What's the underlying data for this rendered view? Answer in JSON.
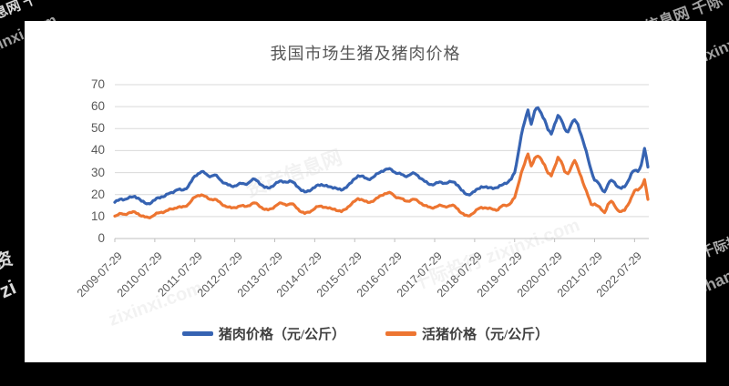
{
  "page": {
    "background": "#000000",
    "panel_background": "#ffffff"
  },
  "watermarks": {
    "top_left_cn": "息网 千",
    "top_left_url": "zixinxi.com",
    "top_right_cn": "产信息网 千际",
    "top_right_url": "zixinxi.com",
    "left_mid_cn": "资",
    "bottom_left_url": "zi",
    "right_mid_cn": "千际投",
    "right_mid_url": "chan",
    "inner_1": "资产信息网",
    "inner_2": "千际投行 zixinxi.com",
    "inner_3": "zixinxi.com"
  },
  "chart_data": {
    "type": "line",
    "title": "我国市场生猪及猪肉价格",
    "xlabel": "",
    "ylabel": "",
    "ylim": [
      0,
      70
    ],
    "yticks": [
      0,
      10,
      20,
      30,
      40,
      50,
      60,
      70
    ],
    "grid": true,
    "legend_position": "bottom",
    "x_unit": "monthly from 2009-07 to 2022-11",
    "x_tick_labels": [
      "2009-07-29",
      "2010-07-29",
      "2011-07-29",
      "2012-07-29",
      "2013-07-29",
      "2014-07-29",
      "2015-07-29",
      "2016-07-29",
      "2017-07-29",
      "2018-07-29",
      "2019-07-29",
      "2020-07-29",
      "2021-07-29",
      "2022-07-29"
    ],
    "months_per_tick": 12,
    "colors": {
      "grid": "#d9d9d9",
      "axis": "#bfbfbf",
      "tick_text": "#595959"
    },
    "series": [
      {
        "name": "活猪价格（元/公斤）",
        "color": "#ED7531",
        "values": [
          10.2,
          10.8,
          11.3,
          11.0,
          11.5,
          11.8,
          12.1,
          11.3,
          10.2,
          9.8,
          9.6,
          9.9,
          10.8,
          11.6,
          12.0,
          12.2,
          12.9,
          13.4,
          13.8,
          14.3,
          14.2,
          14.6,
          15.5,
          17.2,
          18.8,
          19.6,
          19.9,
          19.2,
          18.2,
          17.8,
          17.9,
          17.0,
          15.8,
          14.9,
          14.3,
          13.9,
          14.1,
          14.6,
          14.9,
          14.6,
          14.9,
          15.7,
          16.2,
          15.4,
          14.2,
          13.2,
          13.0,
          13.6,
          14.6,
          15.6,
          16.1,
          15.6,
          15.4,
          15.8,
          15.0,
          13.4,
          12.0,
          11.4,
          12.0,
          12.6,
          13.6,
          14.6,
          14.8,
          14.2,
          13.8,
          13.6,
          13.4,
          12.6,
          12.2,
          13.2,
          14.4,
          15.6,
          17.0,
          18.2,
          17.8,
          17.0,
          16.4,
          16.8,
          17.6,
          18.6,
          19.6,
          20.4,
          20.8,
          20.6,
          19.2,
          18.6,
          18.2,
          17.2,
          17.0,
          17.6,
          17.8,
          17.0,
          16.0,
          15.0,
          14.4,
          14.0,
          14.2,
          14.8,
          15.0,
          14.6,
          14.6,
          15.0,
          14.8,
          13.4,
          11.6,
          10.6,
          10.3,
          11.0,
          12.0,
          13.4,
          14.2,
          14.0,
          13.6,
          13.6,
          13.2,
          13.0,
          14.6,
          15.2,
          15.2,
          16.4,
          18.6,
          24.0,
          30.0,
          34.0,
          38.5,
          33.0,
          36.5,
          37.5,
          36.0,
          33.5,
          29.8,
          28.5,
          32.5,
          37.0,
          35.0,
          30.5,
          29.5,
          32.5,
          35.5,
          32.0,
          28.0,
          23.5,
          19.5,
          15.5,
          15.8,
          14.8,
          13.2,
          11.8,
          15.5,
          17.0,
          15.0,
          12.8,
          12.3,
          12.8,
          15.3,
          18.5,
          21.8,
          22.0,
          23.5,
          26.8,
          17.8
        ]
      },
      {
        "name": "猪肉价格（元/公斤）",
        "color": "#3663B2",
        "values": [
          16.5,
          17.3,
          18.0,
          17.8,
          18.3,
          18.8,
          19.2,
          18.4,
          17.0,
          16.2,
          15.9,
          16.3,
          17.5,
          18.6,
          19.0,
          19.2,
          20.3,
          21.0,
          21.6,
          22.3,
          22.0,
          22.5,
          23.6,
          26.0,
          28.4,
          29.5,
          30.4,
          29.8,
          28.6,
          28.4,
          28.9,
          27.8,
          26.2,
          25.2,
          24.4,
          23.8,
          24.0,
          24.6,
          25.0,
          24.8,
          25.2,
          26.4,
          27.0,
          26.0,
          24.4,
          23.2,
          23.0,
          23.6,
          24.6,
          25.6,
          26.2,
          25.8,
          25.6,
          26.0,
          25.2,
          23.4,
          21.8,
          21.2,
          21.8,
          22.2,
          23.2,
          24.4,
          24.6,
          24.0,
          23.6,
          23.4,
          23.2,
          22.4,
          22.0,
          23.0,
          24.2,
          25.4,
          27.2,
          28.6,
          28.4,
          27.6,
          27.0,
          27.4,
          28.4,
          29.6,
          30.6,
          31.2,
          31.6,
          31.4,
          30.2,
          29.6,
          29.2,
          28.4,
          28.6,
          29.4,
          29.6,
          28.6,
          27.2,
          26.0,
          25.0,
          24.6,
          24.8,
          25.4,
          25.6,
          25.2,
          25.4,
          25.8,
          25.6,
          24.2,
          22.0,
          20.6,
          20.0,
          20.4,
          21.4,
          22.6,
          23.6,
          23.4,
          23.0,
          23.2,
          23.0,
          23.2,
          24.2,
          25.2,
          25.6,
          27.0,
          30.0,
          38.0,
          47.0,
          53.0,
          58.5,
          52.0,
          58.0,
          59.5,
          57.0,
          54.0,
          49.5,
          47.5,
          52.0,
          56.0,
          54.0,
          50.0,
          48.5,
          52.0,
          54.0,
          52.0,
          47.0,
          42.0,
          36.5,
          31.0,
          26.5,
          25.5,
          23.0,
          21.2,
          24.5,
          26.5,
          25.5,
          23.5,
          22.8,
          23.5,
          26.0,
          29.5,
          31.0,
          30.5,
          33.5,
          41.0,
          32.5
        ]
      }
    ],
    "legend_order": [
      "猪肉价格（元/公斤）",
      "活猪价格（元/公斤）"
    ]
  }
}
